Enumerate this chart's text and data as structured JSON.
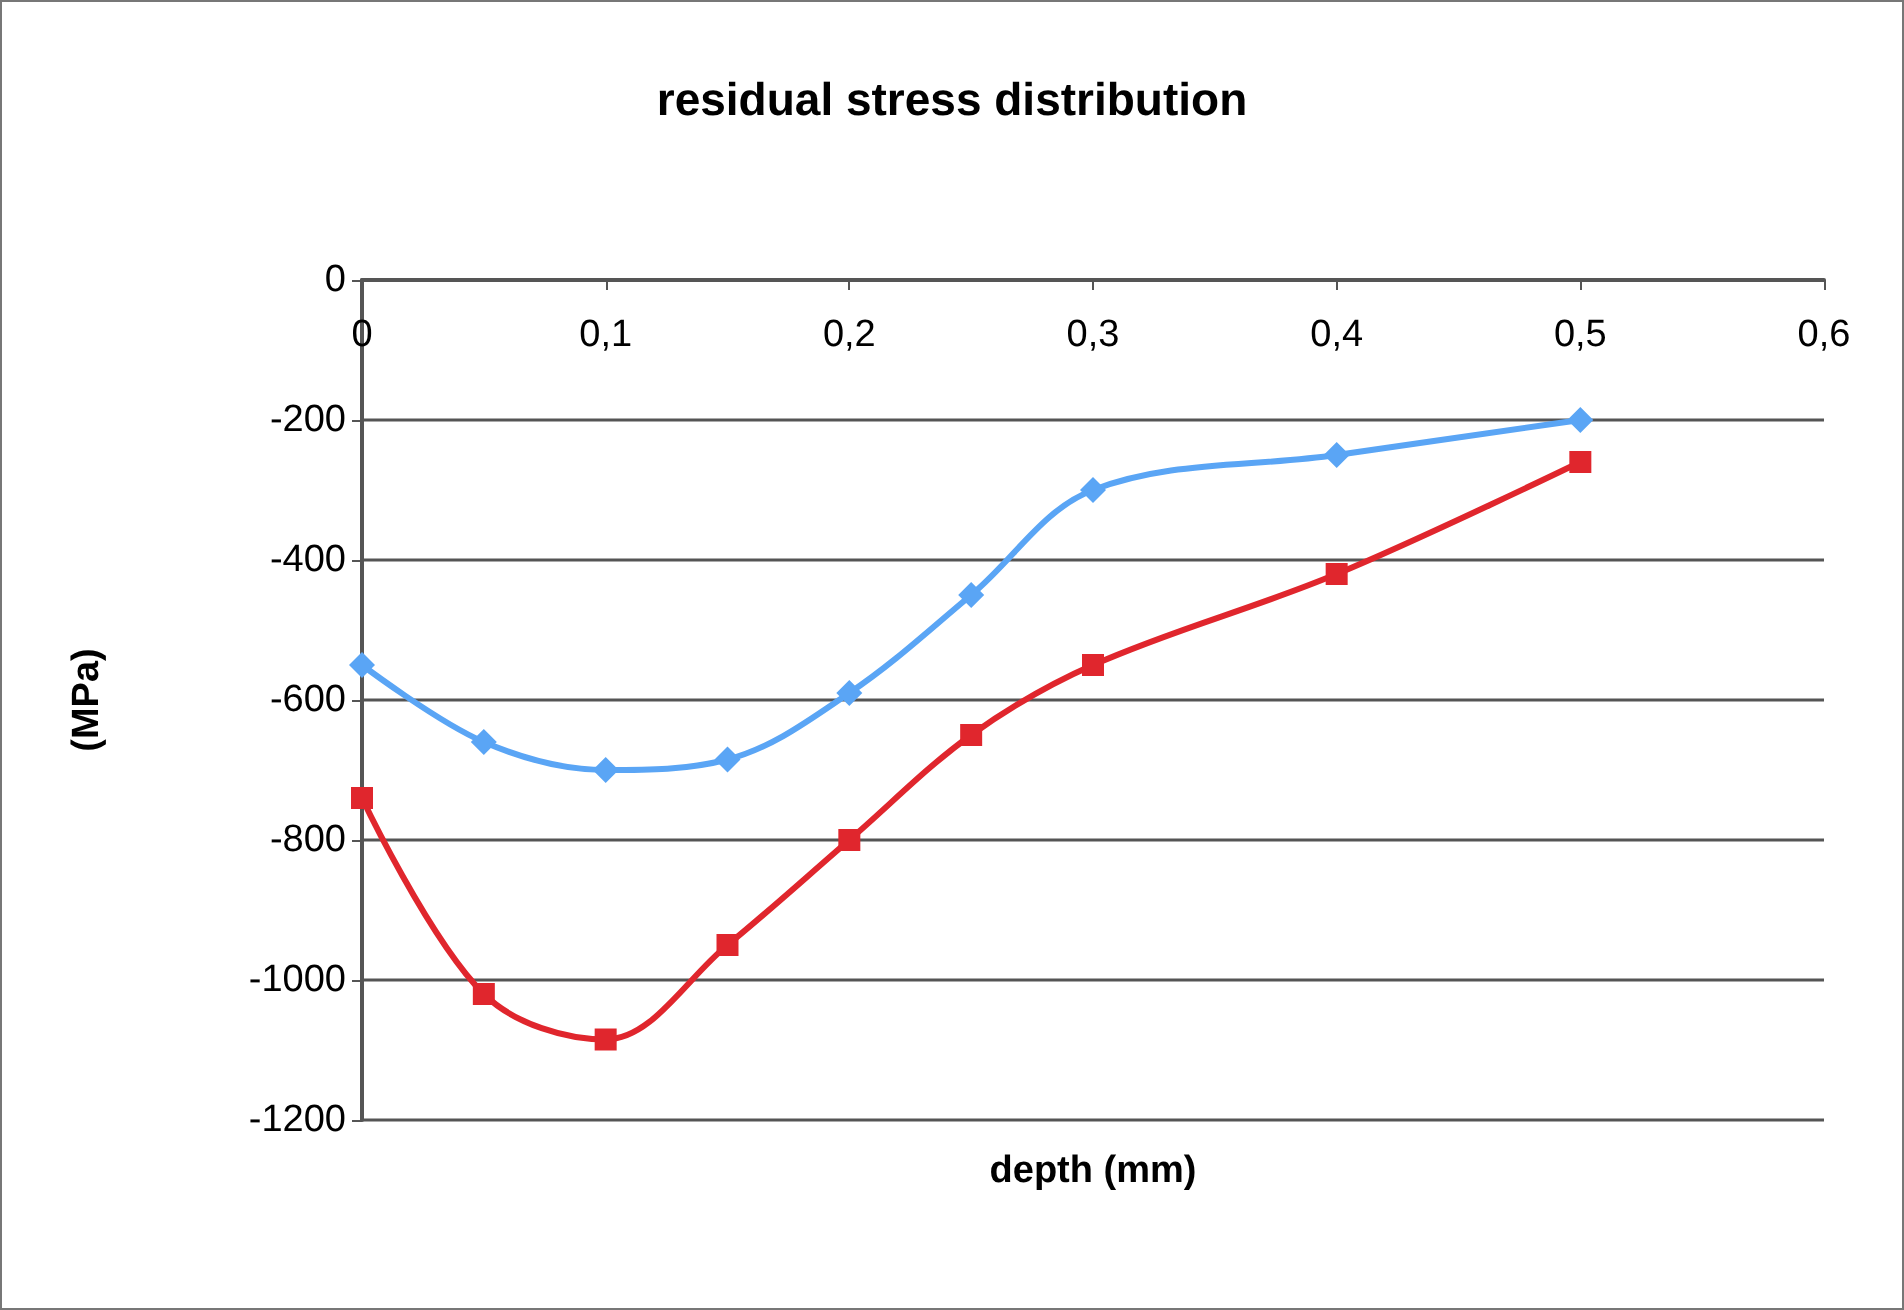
{
  "chart_data": {
    "type": "line",
    "title": "residual stress distribution",
    "xlabel": "depth (mm)",
    "ylabel": "(MPa)",
    "x": [
      0,
      0.05,
      0.1,
      0.15,
      0.2,
      0.25,
      0.3,
      0.4,
      0.5
    ],
    "series": [
      {
        "color": "#5aa5f5",
        "marker": "diamond",
        "values": [
          -550,
          -660,
          -700,
          -685,
          -590,
          -450,
          -300,
          -250,
          -200
        ]
      },
      {
        "color": "#e0262d",
        "marker": "square",
        "values": [
          -740,
          -1020,
          -1085,
          -950,
          -800,
          -650,
          -550,
          -420,
          -260
        ]
      }
    ],
    "xlim": [
      0,
      0.6
    ],
    "xticks": [
      {
        "value": 0,
        "label": "0"
      },
      {
        "value": 0.1,
        "label": "0,1"
      },
      {
        "value": 0.2,
        "label": "0,2"
      },
      {
        "value": 0.3,
        "label": "0,3"
      },
      {
        "value": 0.4,
        "label": "0,4"
      },
      {
        "value": 0.5,
        "label": "0,5"
      },
      {
        "value": 0.6,
        "label": "0,6"
      }
    ],
    "ylim": [
      -1200,
      0
    ],
    "yticks": [
      -1200,
      -1000,
      -800,
      -600,
      -400,
      -200,
      0
    ],
    "grid": "y"
  }
}
